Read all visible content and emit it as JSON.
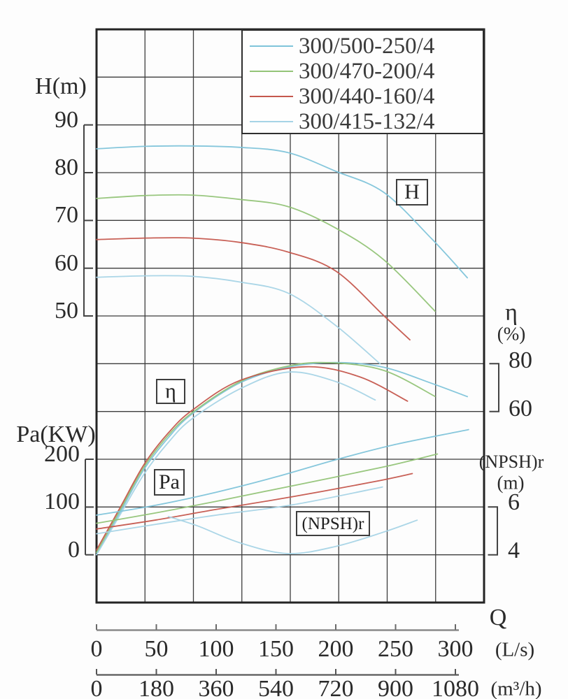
{
  "chart_data": {
    "type": "line",
    "grid": true,
    "x_axis": {
      "label": "Q",
      "units": [
        {
          "label": "(L/s)",
          "ticks": [
            0,
            50,
            100,
            150,
            200,
            250,
            300
          ]
        },
        {
          "label": "(m³/h)",
          "ticks": [
            0,
            180,
            360,
            540,
            720,
            900,
            1080
          ]
        }
      ]
    },
    "y_axes": [
      {
        "id": "H",
        "label": "H(m)",
        "ticks": [
          90,
          80,
          70,
          60,
          50
        ]
      },
      {
        "id": "Pa",
        "label": "Pa(KW)",
        "ticks": [
          200,
          100,
          0
        ]
      },
      {
        "id": "eta",
        "label": "η",
        "unit": "(%)",
        "ticks": [
          80,
          60
        ]
      },
      {
        "id": "npsh",
        "label": "(NPSH)r",
        "unit": "(m)",
        "ticks": [
          6,
          4
        ]
      }
    ],
    "curve_labels": {
      "H": "H",
      "eta": "η",
      "Pa": "Pa",
      "npsh": "(NPSH)r"
    },
    "legend": [
      {
        "label": "300/500-250/4",
        "color": "#7fc4da"
      },
      {
        "label": "300/470-200/4",
        "color": "#94c478"
      },
      {
        "label": "300/440-160/4",
        "color": "#c5574d"
      },
      {
        "label": "300/415-132/4",
        "color": "#a6d4e6"
      }
    ],
    "series": {
      "H": [
        {
          "model": "300/500-250/4",
          "color": "#7fc4da",
          "points": [
            [
              0,
              85.0
            ],
            [
              40,
              85.5
            ],
            [
              80,
              85.6
            ],
            [
              120,
              85.3
            ],
            [
              160,
              84.2
            ],
            [
              200,
              80.3
            ],
            [
              240,
              75.9
            ],
            [
              280,
              66.2
            ],
            [
              310,
              58.0
            ]
          ]
        },
        {
          "model": "300/470-200/4",
          "color": "#94c478",
          "points": [
            [
              0,
              74.6
            ],
            [
              40,
              75.2
            ],
            [
              80,
              75.3
            ],
            [
              120,
              74.4
            ],
            [
              160,
              72.9
            ],
            [
              200,
              68.4
            ],
            [
              240,
              61.8
            ],
            [
              283,
              51.0
            ]
          ]
        },
        {
          "model": "300/440-160/4",
          "color": "#c5574d",
          "points": [
            [
              0,
              66.0
            ],
            [
              40,
              66.3
            ],
            [
              80,
              66.3
            ],
            [
              120,
              65.4
            ],
            [
              160,
              63.4
            ],
            [
              200,
              59.4
            ],
            [
              240,
              50.1
            ],
            [
              262,
              45.0
            ]
          ]
        },
        {
          "model": "300/415-132/4",
          "color": "#a6d4e6",
          "points": [
            [
              0,
              58.1
            ],
            [
              40,
              58.4
            ],
            [
              80,
              58.3
            ],
            [
              120,
              57.1
            ],
            [
              160,
              54.8
            ],
            [
              200,
              48.0
            ],
            [
              237,
              40.0
            ]
          ]
        }
      ],
      "eta": [
        {
          "model": "300/500-250/4",
          "color": "#7fc4da",
          "points": [
            [
              0,
              0
            ],
            [
              20,
              18
            ],
            [
              40,
              36
            ],
            [
              60,
              49
            ],
            [
              80,
              59
            ],
            [
              120,
              72
            ],
            [
              160,
              78.5
            ],
            [
              200,
              80.5
            ],
            [
              240,
              78.5
            ],
            [
              280,
              71.8
            ],
            [
              310,
              66.2
            ]
          ]
        },
        {
          "model": "300/470-200/4",
          "color": "#94c478",
          "points": [
            [
              0,
              1
            ],
            [
              20,
              19
            ],
            [
              40,
              37
            ],
            [
              60,
              50
            ],
            [
              80,
              59.5
            ],
            [
              120,
              72.5
            ],
            [
              160,
              79.0
            ],
            [
              195,
              80.4
            ],
            [
              240,
              77.2
            ],
            [
              283,
              66.3
            ]
          ]
        },
        {
          "model": "300/440-160/4",
          "color": "#c5574d",
          "points": [
            [
              0,
              2
            ],
            [
              20,
              20
            ],
            [
              40,
              38
            ],
            [
              60,
              51
            ],
            [
              80,
              60.5
            ],
            [
              120,
              73.0
            ],
            [
              175,
              78.7
            ],
            [
              220,
              74.5
            ],
            [
              260,
              64.3
            ]
          ]
        },
        {
          "model": "300/415-132/4",
          "color": "#a6d4e6",
          "points": [
            [
              0,
              0
            ],
            [
              20,
              17
            ],
            [
              40,
              34
            ],
            [
              60,
              47
            ],
            [
              80,
              57
            ],
            [
              120,
              69.5
            ],
            [
              160,
              76.5
            ],
            [
              200,
              72.5
            ],
            [
              233,
              64.8
            ]
          ]
        }
      ],
      "Pa": [
        {
          "model": "300/500-250/4",
          "color": "#7fc4da",
          "points": [
            [
              0,
              83
            ],
            [
              50,
              104
            ],
            [
              100,
              131
            ],
            [
              150,
              163
            ],
            [
              200,
              199
            ],
            [
              250,
              231
            ],
            [
              311,
              262
            ]
          ]
        },
        {
          "model": "300/470-200/4",
          "color": "#94c478",
          "points": [
            [
              0,
              66
            ],
            [
              50,
              88
            ],
            [
              100,
              112
            ],
            [
              165,
              145
            ],
            [
              240,
              184
            ],
            [
              285,
              211
            ]
          ]
        },
        {
          "model": "300/440-160/4",
          "color": "#c5574d",
          "points": [
            [
              0,
              54
            ],
            [
              50,
              73
            ],
            [
              100,
              95
            ],
            [
              165,
              122
            ],
            [
              230,
              152
            ],
            [
              264,
              170
            ]
          ]
        },
        {
          "model": "300/415-132/4",
          "color": "#a6d4e6",
          "points": [
            [
              0,
              44
            ],
            [
              50,
              64
            ],
            [
              100,
              83
            ],
            [
              165,
              105
            ],
            [
              239,
              142
            ]
          ]
        }
      ],
      "npsh": [
        {
          "model": "300/415-132/4",
          "color": "#a6d4e6",
          "points": [
            [
              60,
              5.6
            ],
            [
              85,
              5.2
            ],
            [
              120,
              4.5
            ],
            [
              160,
              4.05
            ],
            [
              200,
              4.35
            ],
            [
              240,
              4.95
            ],
            [
              268,
              5.45
            ]
          ]
        }
      ]
    }
  }
}
